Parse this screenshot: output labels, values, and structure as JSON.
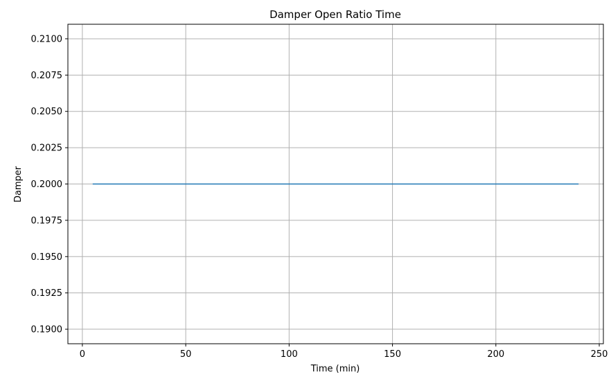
{
  "chart_data": {
    "type": "line",
    "title": "Damper Open Ratio Time",
    "xlabel": "Time (min)",
    "ylabel": "Damper",
    "xlim": [
      -7,
      252
    ],
    "ylim": [
      0.189,
      0.211
    ],
    "xticks": [
      0,
      50,
      100,
      150,
      200,
      250
    ],
    "xtick_labels": [
      "0",
      "50",
      "100",
      "150",
      "200",
      "250"
    ],
    "yticks": [
      0.19,
      0.1925,
      0.195,
      0.1975,
      0.2,
      0.2025,
      0.205,
      0.2075,
      0.21
    ],
    "ytick_labels": [
      "0.1900",
      "0.1925",
      "0.1950",
      "0.1975",
      "0.2000",
      "0.2025",
      "0.2050",
      "0.2075",
      "0.2100"
    ],
    "grid": true,
    "series": [
      {
        "color": "#1f77b4",
        "x": [
          5,
          240
        ],
        "y": [
          0.2,
          0.2
        ]
      }
    ]
  }
}
